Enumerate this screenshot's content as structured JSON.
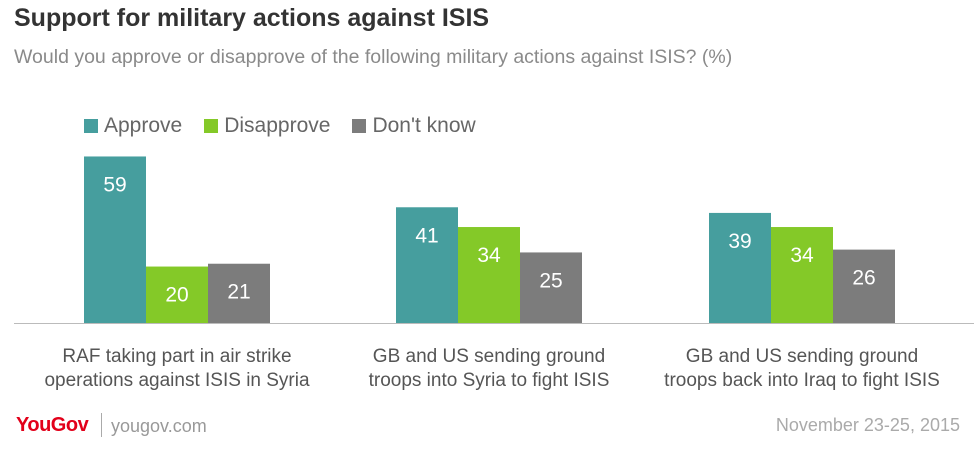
{
  "chart_data": {
    "type": "bar",
    "title": "Support for military actions against ISIS",
    "subtitle": "Would you approve or disapprove of the following military actions against ISIS? (%)",
    "categories": [
      [
        "RAF taking part in air strike",
        "operations against ISIS in Syria"
      ],
      [
        "GB and US sending ground",
        "troops into Syria to fight ISIS"
      ],
      [
        "GB and US sending ground",
        "troops back into Iraq to fight ISIS"
      ]
    ],
    "series": [
      {
        "name": "Approve",
        "color": "#469e9e",
        "values": [
          59,
          41,
          39
        ]
      },
      {
        "name": "Disapprove",
        "color": "#84c928",
        "values": [
          20,
          34,
          34
        ]
      },
      {
        "name": "Don't know",
        "color": "#7c7c7c",
        "values": [
          21,
          25,
          26
        ]
      }
    ],
    "ylim": [
      0,
      62
    ],
    "grid": false,
    "legend_position": "top-left",
    "data_labels": true
  },
  "footer": {
    "logo": "YouGov",
    "site": "yougov.com",
    "date": "November 23-25, 2015"
  }
}
